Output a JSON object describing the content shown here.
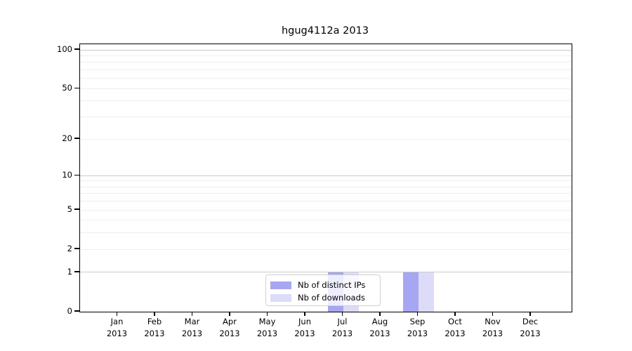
{
  "title": "hgug4112a 2013",
  "legend": {
    "items": [
      {
        "label": "Nb of distinct IPs",
        "color": "#a6a6f2"
      },
      {
        "label": "Nb of downloads",
        "color": "#dcdcf9"
      }
    ]
  },
  "axes": {
    "y_tick_labels": [
      "0",
      "1",
      "2",
      "5",
      "10",
      "20",
      "50",
      "100"
    ],
    "y_tick_values": [
      0,
      1,
      2,
      5,
      10,
      20,
      50,
      100
    ],
    "y_minor_gridlines": [
      2,
      3,
      4,
      5,
      6,
      7,
      8,
      9,
      20,
      30,
      40,
      50,
      60,
      70,
      80,
      90
    ],
    "y_major_gridlines": [
      1,
      10,
      100
    ]
  },
  "colors": {
    "spine": "#000000",
    "minor_grid": "#eeeeee",
    "major_grid": "#c9c9c9",
    "background": "#ffffff"
  },
  "chart_data": {
    "type": "bar",
    "title": "hgug4112a 2013",
    "categories": [
      "Jan 2013",
      "Feb 2013",
      "Mar 2013",
      "Apr 2013",
      "May 2013",
      "Jun 2013",
      "Jul 2013",
      "Aug 2013",
      "Sep 2013",
      "Oct 2013",
      "Nov 2013",
      "Dec 2013"
    ],
    "series": [
      {
        "name": "Nb of distinct IPs",
        "color": "#a6a6f2",
        "values": [
          0,
          0,
          0,
          0,
          0,
          0,
          1,
          0,
          1,
          0,
          0,
          0
        ]
      },
      {
        "name": "Nb of downloads",
        "color": "#dcdcf9",
        "values": [
          0,
          0,
          0,
          0,
          0,
          0,
          1,
          0,
          1,
          0,
          0,
          0
        ]
      }
    ],
    "xlabel": "",
    "ylabel": "",
    "y_scale": "log1p",
    "ylim": [
      0,
      110
    ],
    "grid": true,
    "legend_position": "bottom-center-inside"
  }
}
